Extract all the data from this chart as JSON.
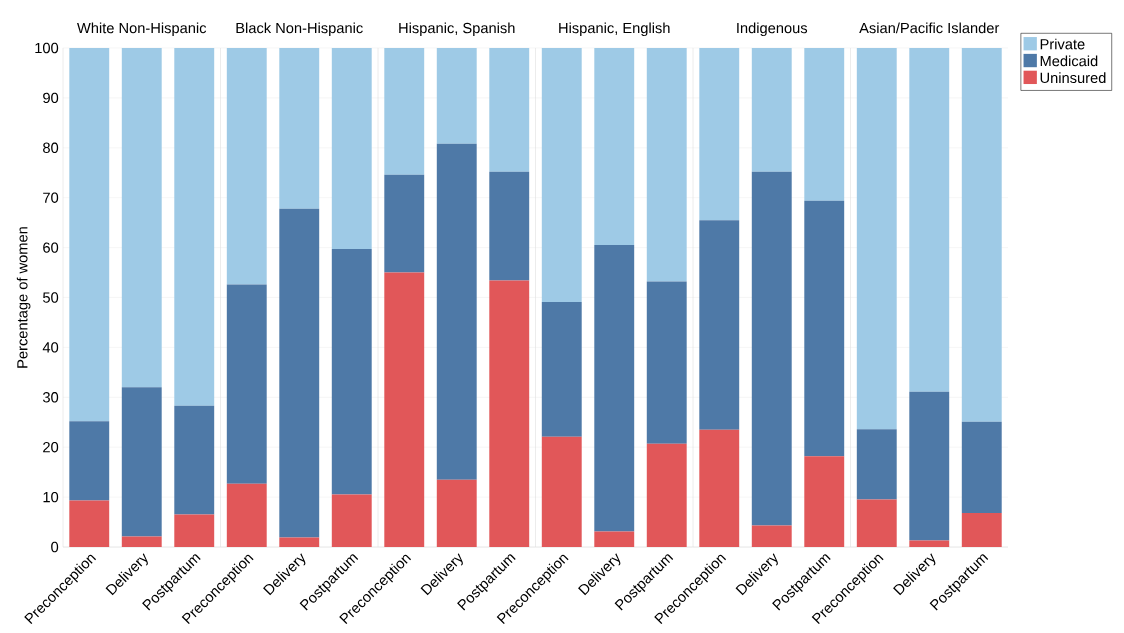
{
  "chart_data": [
    {
      "type": "bar",
      "title": "White Non-Hispanic",
      "ylabel": "Percentage of women",
      "categories": [
        "Preconception",
        "Delivery",
        "Postpartum"
      ],
      "stacked": true,
      "grid": "y",
      "ylim": [
        0,
        100
      ],
      "yticks": [
        0,
        10,
        20,
        30,
        40,
        50,
        60,
        70,
        80,
        90,
        100
      ],
      "series": [
        {
          "color": "#e15759",
          "values": [
            9.3,
            2.1,
            6.5
          ]
        },
        {
          "color": "#4e79a7",
          "values": [
            15.9,
            29.9,
            21.8
          ]
        },
        {
          "color": "#9ecae6",
          "values": [
            74.8,
            68.0,
            71.7
          ]
        }
      ]
    },
    {
      "type": "bar",
      "title": "Black Non-Hispanic",
      "categories": [
        "Preconception",
        "Delivery",
        "Postpartum"
      ],
      "stacked": true,
      "grid": "y",
      "ylim": [
        0,
        100
      ],
      "yticks": [
        0,
        10,
        20,
        30,
        40,
        50,
        60,
        70,
        80,
        90,
        100
      ],
      "tick_labels": "x",
      "series": [
        {
          "color": "#e15759",
          "values": [
            12.7,
            1.9,
            10.5
          ]
        },
        {
          "color": "#4e79a7",
          "values": [
            39.9,
            65.9,
            49.2
          ]
        },
        {
          "color": "#9ecae6",
          "values": [
            47.4,
            32.2,
            40.3
          ]
        }
      ]
    },
    {
      "type": "bar",
      "title": "Hispanic, Spanish",
      "categories": [
        "Preconception",
        "Delivery",
        "Postpartum"
      ],
      "stacked": true,
      "grid": "y",
      "ylim": [
        0,
        100
      ],
      "yticks": [
        0,
        10,
        20,
        30,
        40,
        50,
        60,
        70,
        80,
        90,
        100
      ],
      "tick_labels": "x",
      "series": [
        {
          "color": "#e15759",
          "values": [
            55.0,
            13.5,
            53.4
          ]
        },
        {
          "color": "#4e79a7",
          "values": [
            19.6,
            67.3,
            21.8
          ]
        },
        {
          "color": "#9ecae6",
          "values": [
            25.4,
            19.2,
            24.8
          ]
        }
      ]
    },
    {
      "type": "bar",
      "title": "Hispanic, English",
      "categories": [
        "Preconception",
        "Delivery",
        "Postpartum"
      ],
      "stacked": true,
      "grid": "y",
      "ylim": [
        0,
        100
      ],
      "yticks": [
        0,
        10,
        20,
        30,
        40,
        50,
        60,
        70,
        80,
        90,
        100
      ],
      "tick_labels": "x",
      "series": [
        {
          "color": "#e15759",
          "values": [
            22.1,
            3.1,
            20.7
          ]
        },
        {
          "color": "#4e79a7",
          "values": [
            27.0,
            57.4,
            32.5
          ]
        },
        {
          "color": "#9ecae6",
          "values": [
            50.9,
            39.5,
            46.8
          ]
        }
      ]
    },
    {
      "type": "bar",
      "title": "Indigenous",
      "categories": [
        "Preconception",
        "Delivery",
        "Postpartum"
      ],
      "stacked": true,
      "grid": "y",
      "ylim": [
        0,
        100
      ],
      "yticks": [
        0,
        10,
        20,
        30,
        40,
        50,
        60,
        70,
        80,
        90,
        100
      ],
      "tick_labels": "x",
      "series": [
        {
          "color": "#e15759",
          "values": [
            23.5,
            4.3,
            18.2
          ]
        },
        {
          "color": "#4e79a7",
          "values": [
            42.0,
            70.9,
            51.2
          ]
        },
        {
          "color": "#9ecae6",
          "values": [
            34.5,
            24.8,
            30.6
          ]
        }
      ]
    },
    {
      "type": "bar",
      "title": "Asian/Pacific Islander",
      "categories": [
        "Preconception",
        "Delivery",
        "Postpartum"
      ],
      "stacked": true,
      "grid": "y",
      "ylim": [
        0,
        100
      ],
      "yticks": [
        0,
        10,
        20,
        30,
        40,
        50,
        60,
        70,
        80,
        90,
        100
      ],
      "tick_labels": "x",
      "legend": "top right",
      "series": [
        {
          "name": "Uninsured",
          "color": "#e15759",
          "values": [
            9.5,
            1.3,
            6.8
          ]
        },
        {
          "name": "Medicaid",
          "color": "#4e79a7",
          "values": [
            14.1,
            29.8,
            18.3
          ]
        },
        {
          "name": "Private",
          "color": "#9ecae6",
          "values": [
            76.4,
            68.9,
            74.9
          ]
        }
      ]
    }
  ]
}
